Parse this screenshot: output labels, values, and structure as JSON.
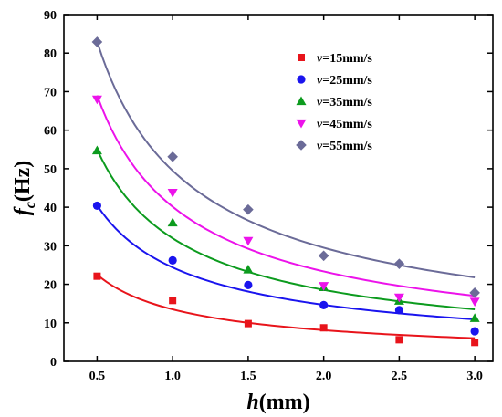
{
  "chart_data": {
    "type": "scatter",
    "xlabel": {
      "italic": "h",
      "rest": "(mm)"
    },
    "ylabel": {
      "italic": "f",
      "sub": "c",
      "rest": "(Hz)"
    },
    "xlim": [
      0.28,
      3.12
    ],
    "ylim": [
      0,
      90
    ],
    "xticks": [
      "0.5",
      "1.0",
      "1.5",
      "2.0",
      "2.5",
      "3.0"
    ],
    "yticks": [
      "0",
      "10",
      "20",
      "30",
      "40",
      "50",
      "60",
      "70",
      "80",
      "90"
    ],
    "grid": false,
    "legend_position": "top-right",
    "x": [
      0.5,
      1.0,
      1.5,
      2.0,
      2.5,
      3.0
    ],
    "series": [
      {
        "name": "v=15mm/s",
        "var": "v",
        "rest": "=15mm/s",
        "color": "#e8141b",
        "marker": "square",
        "values": [
          22.1,
          15.8,
          9.8,
          8.7,
          5.6,
          4.9
        ],
        "fit": [
          22.5,
          13.5,
          10.0,
          8.2,
          7.0,
          6.0
        ]
      },
      {
        "name": "v=25mm/s",
        "var": "v",
        "rest": "=25mm/s",
        "color": "#1a14ee",
        "marker": "circle",
        "values": [
          40.4,
          26.2,
          19.8,
          14.6,
          13.3,
          7.8
        ],
        "fit": [
          40.5,
          23.5,
          17.3,
          14.2,
          12.3,
          10.9
        ]
      },
      {
        "name": "v=35mm/s",
        "var": "v",
        "rest": "=35mm/s",
        "color": "#0c9b1e",
        "marker": "triangle-up",
        "values": [
          54.7,
          36.0,
          23.8,
          19.2,
          15.7,
          11.2
        ],
        "fit": [
          55.0,
          31.5,
          23.3,
          19.0,
          15.6,
          13.5
        ]
      },
      {
        "name": "v=45mm/s",
        "var": "v",
        "rest": "=45mm/s",
        "color": "#ec13ea",
        "marker": "triangle-down",
        "values": [
          68.0,
          43.8,
          31.3,
          19.6,
          16.6,
          15.5
        ],
        "fit": [
          69.0,
          40.0,
          29.0,
          22.8,
          19.5,
          17.0
        ]
      },
      {
        "name": "v=55mm/s",
        "var": "v",
        "rest": "=55mm/s",
        "color": "#6b6b98",
        "marker": "diamond",
        "values": [
          82.9,
          53.1,
          39.4,
          27.4,
          25.3,
          17.8
        ],
        "fit": [
          83.0,
          48.5,
          35.5,
          29.0,
          24.7,
          21.8
        ]
      }
    ]
  }
}
